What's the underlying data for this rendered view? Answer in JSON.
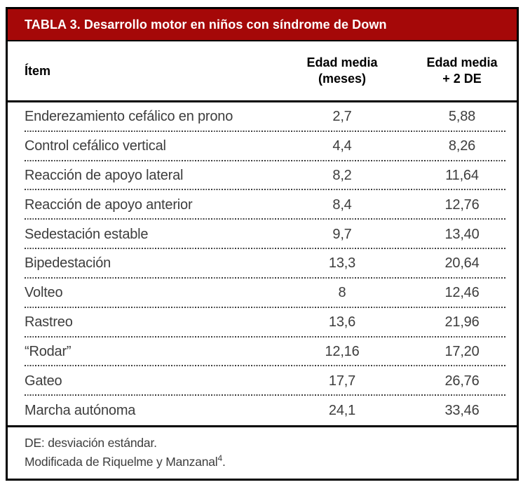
{
  "table": {
    "title": "TABLA 3. Desarrollo motor en niños con síndrome de Down",
    "columns": {
      "item": "Ítem",
      "mean_age_line1": "Edad media",
      "mean_age_line2": "(meses)",
      "mean_plus_2sd_line1": "Edad media",
      "mean_plus_2sd_line2": "+ 2 DE"
    },
    "rows": [
      {
        "item": "Enderezamiento cefálico en prono",
        "edad_media": "2,7",
        "edad_media_mas_2de": "5,88"
      },
      {
        "item": "Control cefálico vertical",
        "edad_media": "4,4",
        "edad_media_mas_2de": "8,26"
      },
      {
        "item": "Reacción de apoyo lateral",
        "edad_media": "8,2",
        "edad_media_mas_2de": "11,64"
      },
      {
        "item": "Reacción de apoyo anterior",
        "edad_media": "8,4",
        "edad_media_mas_2de": "12,76"
      },
      {
        "item": "Sedestación estable",
        "edad_media": "9,7",
        "edad_media_mas_2de": "13,40"
      },
      {
        "item": "Bipedestación",
        "edad_media": "13,3",
        "edad_media_mas_2de": "20,64"
      },
      {
        "item": "Volteo",
        "edad_media": "8",
        "edad_media_mas_2de": "12,46"
      },
      {
        "item": "Rastreo",
        "edad_media": "13,6",
        "edad_media_mas_2de": "21,96"
      },
      {
        "item": "“Rodar”",
        "edad_media": "12,16",
        "edad_media_mas_2de": "17,20"
      },
      {
        "item": "Gateo",
        "edad_media": "17,7",
        "edad_media_mas_2de": "26,76"
      },
      {
        "item": "Marcha autónoma",
        "edad_media": "24,1",
        "edad_media_mas_2de": "33,46"
      }
    ],
    "footnotes": {
      "line1": "DE: desviación estándar.",
      "line2_text": "Modificada de Riquelme y Manzanal",
      "line2_superscript": "4",
      "line2_suffix": "."
    },
    "colors": {
      "title_background": "#a50808",
      "title_text": "#ffffff",
      "border": "#000000",
      "body_text": "#3d3d3d"
    }
  }
}
